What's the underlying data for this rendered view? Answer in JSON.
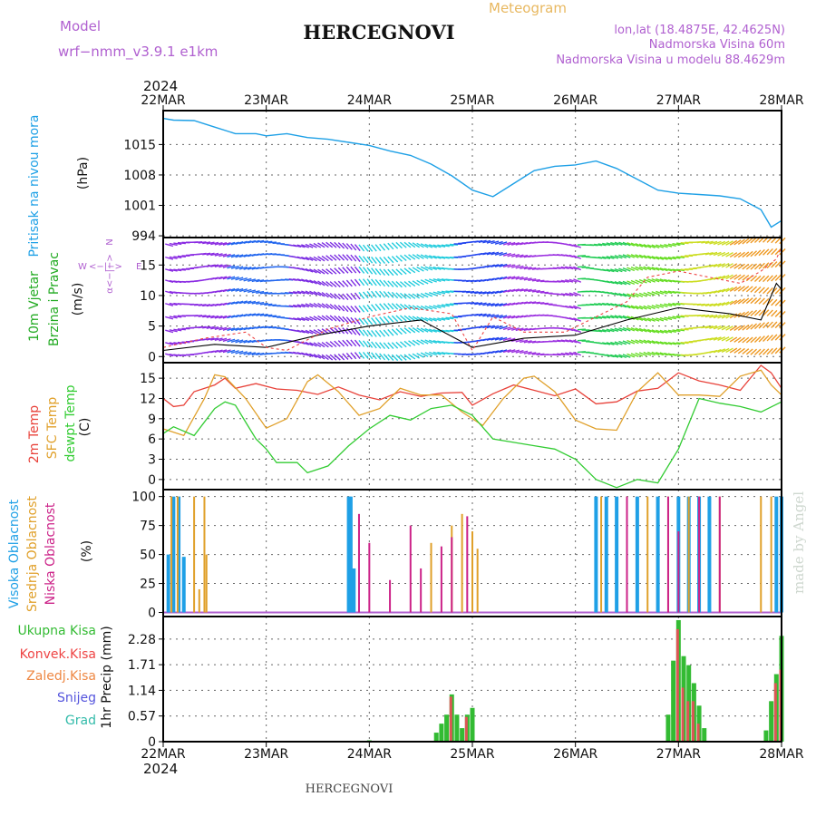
{
  "header": {
    "model_label": "Model",
    "model_name": "wrf−nmm_v3.9.1  e1km",
    "title": "HERCEGNOVI",
    "product": "Meteogram",
    "lonlat": "lon,lat (18.4875E, 42.4625N)",
    "elevation": "Nadmorska Visina 60m",
    "model_elevation": "Nadmorska Visina u modelu 88.4629m",
    "year_top": "2024",
    "year_bottom": "2024",
    "footer_title": "HERCEGNOVI",
    "watermark": "made by Angel"
  },
  "colors": {
    "pressure": "#1ea0e6",
    "temp2m": "#e8423a",
    "sfc": "#e0a02a",
    "dewpt": "#33cc33",
    "high_cloud": "#1fa0e6",
    "mid_cloud": "#e0a02a",
    "low_cloud": "#cc2288",
    "total_precip": "#33bb33",
    "conv_precip": "#dd5555",
    "wind_gust": "#ee4444",
    "wind_speed": "#000000",
    "purple": "#b060d0"
  },
  "chart_data": [
    {
      "type": "line",
      "panel": "pressure",
      "ylabel": [
        "Pritisak na nivou mora",
        "(hPa)"
      ],
      "yticks": [
        994,
        1001,
        1008,
        1015
      ],
      "ylim": [
        993.6,
        1022.8
      ],
      "x_ticks": [
        "22MAR",
        "23MAR",
        "24MAR",
        "25MAR",
        "26MAR",
        "27MAR",
        "28MAR"
      ],
      "x": [
        0,
        0.1,
        0.3,
        0.5,
        0.7,
        0.9,
        1.0,
        1.2,
        1.4,
        1.6,
        1.8,
        2.0,
        2.2,
        2.4,
        2.6,
        2.8,
        3.0,
        3.2,
        3.4,
        3.6,
        3.8,
        4.0,
        4.2,
        4.4,
        4.6,
        4.8,
        5.0,
        5.2,
        5.4,
        5.6,
        5.8,
        5.9,
        6.0
      ],
      "series": [
        {
          "values": [
            1021,
            1020.6,
            1020.5,
            1019,
            1017.5,
            1017.5,
            1017,
            1017.5,
            1016.6,
            1016.2,
            1015.5,
            1014.8,
            1013.5,
            1012.5,
            1010.5,
            1007.8,
            1004.5,
            1003,
            1006,
            1009,
            1010,
            1010.3,
            1011.2,
            1009.5,
            1007,
            1004.5,
            1003.8,
            1003.5,
            1003.2,
            1002.5,
            1000,
            996,
            997.5
          ]
        }
      ]
    },
    {
      "type": "line",
      "panel": "wind",
      "ylabel": [
        "10m Vjetar",
        "Brzina i Pravac",
        "(m/s)"
      ],
      "yticks": [
        0,
        5,
        10,
        15
      ],
      "ylim": [
        -1,
        19.5
      ],
      "compass": [
        "N",
        "E",
        "W",
        "<−|−>",
        "α<−|−>"
      ],
      "series": [
        {
          "values": [
            [
              0,
              1
            ],
            [
              0.5,
              2
            ],
            [
              1,
              1.5
            ],
            [
              1.5,
              3.5
            ],
            [
              2,
              5
            ],
            [
              2.5,
              6
            ],
            [
              3,
              1.5
            ],
            [
              3.5,
              3
            ],
            [
              4,
              3.5
            ],
            [
              4.5,
              6
            ],
            [
              5,
              8
            ],
            [
              5.5,
              7
            ],
            [
              5.8,
              6
            ],
            [
              5.95,
              12
            ],
            [
              6,
              11
            ]
          ]
        },
        {
          "values": [
            [
              0,
              1.5
            ],
            [
              0.4,
              3
            ],
            [
              0.8,
              4
            ],
            [
              1,
              1.5
            ],
            [
              1.2,
              1
            ],
            [
              1.6,
              4.5
            ],
            [
              2,
              6.5
            ],
            [
              2.4,
              8
            ],
            [
              2.8,
              7
            ],
            [
              3.0,
              1
            ],
            [
              3.2,
              6.5
            ],
            [
              3.5,
              4
            ],
            [
              3.9,
              4
            ],
            [
              4.2,
              6.5
            ],
            [
              4.5,
              9
            ],
            [
              4.7,
              13
            ],
            [
              5,
              14
            ],
            [
              5.3,
              13
            ],
            [
              5.6,
              12
            ],
            [
              5.8,
              14
            ],
            [
              5.95,
              16
            ],
            [
              6,
              18
            ]
          ]
        }
      ]
    },
    {
      "type": "line",
      "panel": "temperature",
      "ylabel": [
        "2m Temp",
        "SFC Temp",
        "dewpt Temp",
        "(C)"
      ],
      "yticks": [
        0,
        3,
        6,
        9,
        12,
        15
      ],
      "ylim": [
        -1.5,
        17.3
      ],
      "series": [
        {
          "name": "2m Temp",
          "values": [
            [
              0,
              12
            ],
            [
              0.1,
              10.8
            ],
            [
              0.2,
              11
            ],
            [
              0.3,
              13
            ],
            [
              0.5,
              14
            ],
            [
              0.6,
              15
            ],
            [
              0.7,
              13.5
            ],
            [
              0.9,
              14.2
            ],
            [
              1.1,
              13.4
            ],
            [
              1.3,
              13.2
            ],
            [
              1.5,
              12.6
            ],
            [
              1.7,
              13.7
            ],
            [
              1.9,
              12.5
            ],
            [
              2.1,
              11.8
            ],
            [
              2.3,
              13
            ],
            [
              2.5,
              12.3
            ],
            [
              2.7,
              12.8
            ],
            [
              2.9,
              12.9
            ],
            [
              3.0,
              11
            ],
            [
              3.2,
              12.7
            ],
            [
              3.4,
              14
            ],
            [
              3.6,
              13.2
            ],
            [
              3.8,
              12.4
            ],
            [
              4.0,
              13.4
            ],
            [
              4.2,
              11.2
            ],
            [
              4.4,
              11.5
            ],
            [
              4.6,
              13.1
            ],
            [
              4.8,
              13.5
            ],
            [
              5.0,
              15.8
            ],
            [
              5.2,
              14.6
            ],
            [
              5.4,
              14
            ],
            [
              5.6,
              13.2
            ],
            [
              5.8,
              16.9
            ],
            [
              5.9,
              15.8
            ],
            [
              6.0,
              13.5
            ]
          ]
        },
        {
          "name": "SFC Temp",
          "values": [
            [
              0,
              7.5
            ],
            [
              0.2,
              6.5
            ],
            [
              0.4,
              12
            ],
            [
              0.5,
              15.5
            ],
            [
              0.6,
              15.2
            ],
            [
              0.8,
              12
            ],
            [
              1.0,
              7.6
            ],
            [
              1.2,
              9
            ],
            [
              1.4,
              14.5
            ],
            [
              1.5,
              15.5
            ],
            [
              1.7,
              13
            ],
            [
              1.9,
              9.5
            ],
            [
              2.1,
              10.5
            ],
            [
              2.3,
              13.5
            ],
            [
              2.5,
              12.5
            ],
            [
              2.7,
              12.5
            ],
            [
              2.9,
              10
            ],
            [
              3.1,
              8
            ],
            [
              3.3,
              12
            ],
            [
              3.5,
              15
            ],
            [
              3.6,
              15.3
            ],
            [
              3.8,
              13
            ],
            [
              4.0,
              8.8
            ],
            [
              4.2,
              7.5
            ],
            [
              4.4,
              7.3
            ],
            [
              4.6,
              13
            ],
            [
              4.8,
              15.8
            ],
            [
              5.0,
              12.5
            ],
            [
              5.2,
              12.5
            ],
            [
              5.4,
              12.3
            ],
            [
              5.6,
              15.3
            ],
            [
              5.8,
              16.2
            ],
            [
              5.9,
              14
            ],
            [
              6.0,
              12.5
            ]
          ]
        },
        {
          "name": "dewpt Temp",
          "values": [
            [
              0,
              6.8
            ],
            [
              0.1,
              7.8
            ],
            [
              0.3,
              6.5
            ],
            [
              0.5,
              10.5
            ],
            [
              0.6,
              11.5
            ],
            [
              0.7,
              11
            ],
            [
              0.8,
              8.5
            ],
            [
              0.9,
              6
            ],
            [
              1.0,
              4.5
            ],
            [
              1.1,
              2.5
            ],
            [
              1.3,
              2.5
            ],
            [
              1.4,
              1
            ],
            [
              1.6,
              2
            ],
            [
              1.8,
              5
            ],
            [
              2.0,
              7.5
            ],
            [
              2.2,
              9.5
            ],
            [
              2.4,
              8.8
            ],
            [
              2.6,
              10.5
            ],
            [
              2.8,
              11
            ],
            [
              3.0,
              9.5
            ],
            [
              3.2,
              6
            ],
            [
              3.4,
              5.5
            ],
            [
              3.6,
              5
            ],
            [
              3.8,
              4.5
            ],
            [
              4.0,
              3
            ],
            [
              4.2,
              0
            ],
            [
              4.4,
              -1.2
            ],
            [
              4.6,
              0
            ],
            [
              4.8,
              -0.5
            ],
            [
              5.0,
              4.5
            ],
            [
              5.2,
              12
            ],
            [
              5.4,
              11.3
            ],
            [
              5.6,
              10.8
            ],
            [
              5.8,
              10
            ],
            [
              6.0,
              11.5
            ]
          ]
        }
      ]
    },
    {
      "type": "bar",
      "panel": "cloud",
      "ylabel": [
        "Visoka Oblacnost",
        "Srednja Oblacnost",
        "Niska Oblacnost",
        "(%)"
      ],
      "yticks": [
        0,
        25,
        50,
        75,
        100
      ],
      "ylim": [
        -3.5,
        106
      ],
      "series": [
        {
          "name": "Visoka Oblacnost",
          "values": [
            [
              0.05,
              50
            ],
            [
              0.1,
              100
            ],
            [
              0.15,
              100
            ],
            [
              0.2,
              48
            ],
            [
              1.8,
              100
            ],
            [
              1.82,
              100
            ],
            [
              1.85,
              38
            ],
            [
              4.2,
              100
            ],
            [
              4.3,
              100
            ],
            [
              4.4,
              100
            ],
            [
              4.6,
              100
            ],
            [
              4.8,
              100
            ],
            [
              5.0,
              100
            ],
            [
              5.1,
              100
            ],
            [
              5.2,
              100
            ],
            [
              5.3,
              100
            ],
            [
              5.95,
              100
            ],
            [
              6.0,
              100
            ]
          ]
        },
        {
          "name": "Srednja Oblacnost",
          "values": [
            [
              0.08,
              100
            ],
            [
              0.14,
              100
            ],
            [
              0.3,
              100
            ],
            [
              0.35,
              20
            ],
            [
              0.4,
              100
            ],
            [
              0.42,
              50
            ],
            [
              2.6,
              60
            ],
            [
              2.8,
              75
            ],
            [
              2.9,
              85
            ],
            [
              3.0,
              70
            ],
            [
              3.05,
              55
            ],
            [
              4.25,
              100
            ],
            [
              4.5,
              100
            ],
            [
              4.7,
              100
            ],
            [
              4.9,
              100
            ],
            [
              5.1,
              100
            ],
            [
              5.4,
              100
            ],
            [
              5.8,
              100
            ],
            [
              5.9,
              100
            ]
          ]
        },
        {
          "name": "Niska Oblacnost",
          "values": [
            [
              1.9,
              85
            ],
            [
              2.0,
              60
            ],
            [
              2.2,
              28
            ],
            [
              2.4,
              75
            ],
            [
              2.5,
              38
            ],
            [
              2.7,
              57
            ],
            [
              2.8,
              65
            ],
            [
              2.95,
              83
            ],
            [
              4.5,
              100
            ],
            [
              4.9,
              100
            ],
            [
              5.0,
              70
            ],
            [
              5.2,
              100
            ],
            [
              5.4,
              100
            ]
          ]
        }
      ]
    },
    {
      "type": "bar",
      "panel": "precip",
      "ylabel": [
        "1hr Precip (mm)"
      ],
      "legend": [
        "Ukupna Kisa",
        "Konvek.Kisa",
        "Zaledj.Kisa",
        "Snijeg",
        "Grad"
      ],
      "yticks": [
        0,
        0.57,
        1.14,
        1.71,
        2.28
      ],
      "ylim": [
        0,
        2.78
      ],
      "series": [
        {
          "name": "Ukupna Kisa",
          "values": [
            [
              2.0,
              0.03
            ],
            [
              2.65,
              0.2
            ],
            [
              2.7,
              0.4
            ],
            [
              2.75,
              0.6
            ],
            [
              2.8,
              1.05
            ],
            [
              2.85,
              0.6
            ],
            [
              2.9,
              0.3
            ],
            [
              2.95,
              0.6
            ],
            [
              3.0,
              0.75
            ],
            [
              4.9,
              0.6
            ],
            [
              4.95,
              1.8
            ],
            [
              5.0,
              2.7
            ],
            [
              5.05,
              1.9
            ],
            [
              5.1,
              1.7
            ],
            [
              5.15,
              1.3
            ],
            [
              5.2,
              0.8
            ],
            [
              5.25,
              0.3
            ],
            [
              5.85,
              0.25
            ],
            [
              5.9,
              0.9
            ],
            [
              5.95,
              1.5
            ],
            [
              6.0,
              2.35
            ]
          ]
        },
        {
          "name": "Konvek.Kisa",
          "values": [
            [
              2.8,
              1.0
            ],
            [
              2.95,
              0.55
            ],
            [
              5.0,
              2.5
            ],
            [
              5.05,
              1.2
            ],
            [
              5.1,
              0.9
            ],
            [
              5.15,
              0.9
            ],
            [
              5.2,
              0.4
            ],
            [
              5.95,
              1.3
            ],
            [
              6.0,
              1.6
            ]
          ]
        }
      ]
    }
  ]
}
